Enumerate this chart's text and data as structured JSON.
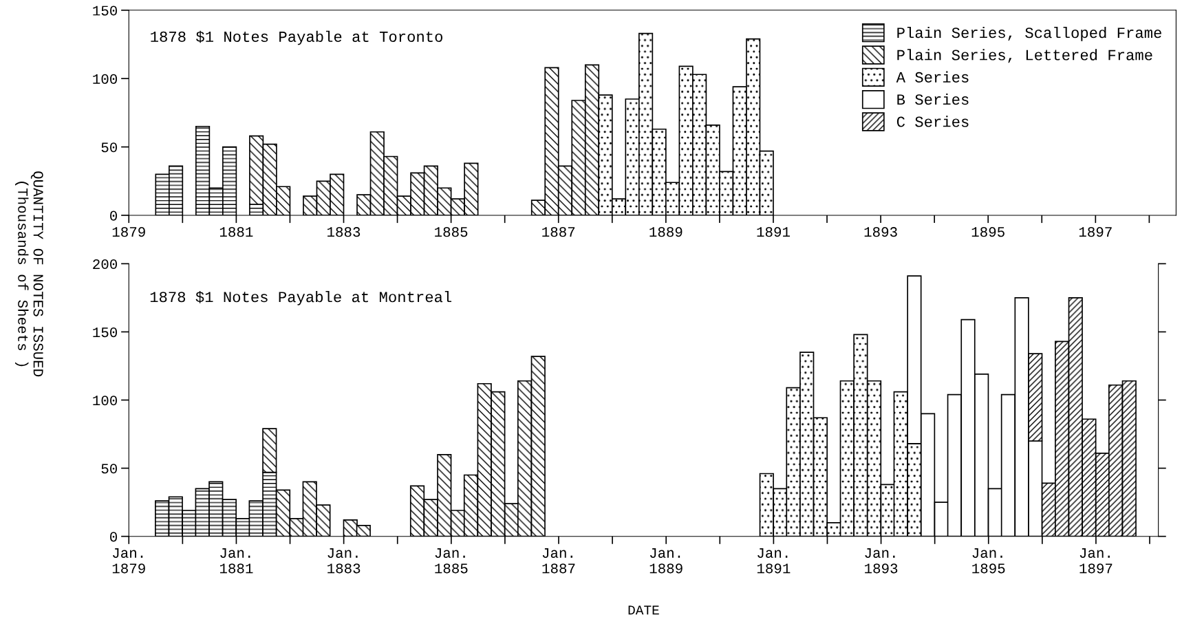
{
  "chart_data": [
    {
      "type": "bar",
      "title": "1878 $1 Notes Payable at Toronto",
      "ylabel": "QUANTITY OF NOTES ISSUED\n(Thousands of Sheets )",
      "xlim": [
        1879,
        1898.5
      ],
      "ylim": [
        0,
        150
      ],
      "yticks": [
        0,
        50,
        100,
        150
      ],
      "xticks": [
        {
          "value": 1879,
          "label": "1879"
        },
        {
          "value": 1880,
          "label": null
        },
        {
          "value": 1881,
          "label": "1881"
        },
        {
          "value": 1882,
          "label": null
        },
        {
          "value": 1883,
          "label": "1883"
        },
        {
          "value": 1884,
          "label": null
        },
        {
          "value": 1885,
          "label": "1885"
        },
        {
          "value": 1886,
          "label": null
        },
        {
          "value": 1887,
          "label": "1887"
        },
        {
          "value": 1888,
          "label": null
        },
        {
          "value": 1889,
          "label": "1889"
        },
        {
          "value": 1890,
          "label": null
        },
        {
          "value": 1891,
          "label": "1891"
        },
        {
          "value": 1892,
          "label": null
        },
        {
          "value": 1893,
          "label": "1893"
        },
        {
          "value": 1894,
          "label": null
        },
        {
          "value": 1895,
          "label": "1895"
        },
        {
          "value": 1896,
          "label": null
        },
        {
          "value": 1897,
          "label": "1897"
        },
        {
          "value": 1898,
          "label": null
        }
      ],
      "grid": false,
      "legend": "top right",
      "series": [
        {
          "name": "Plain Series, Scalloped Frame",
          "color": "#000000",
          "x": [
            1879.625,
            1879.875,
            1880.375,
            1880.625,
            1880.875,
            1881.375
          ],
          "values": [
            30,
            36,
            65,
            20,
            50,
            8
          ]
        },
        {
          "name": "Plain Series, Lettered Frame",
          "color": "#000000",
          "x": [
            1881.375,
            1881.625,
            1881.875,
            1882.375,
            1882.625,
            1882.875,
            1883.375,
            1883.625,
            1883.875,
            1884.125,
            1884.375,
            1884.625,
            1884.875,
            1885.125,
            1885.375,
            1886.625,
            1886.875,
            1887.125,
            1887.375,
            1887.625
          ],
          "values": [
            50,
            52,
            21,
            14,
            25,
            30,
            15,
            61,
            43,
            14,
            31,
            36,
            20,
            12,
            38,
            11,
            108,
            36,
            84,
            110
          ],
          "base": [
            8,
            0,
            0,
            0,
            0,
            0,
            0,
            0,
            0,
            0,
            0,
            0,
            0,
            0,
            0,
            0,
            0,
            0,
            0,
            0
          ]
        },
        {
          "name": "A Series",
          "color": "#000000",
          "x": [
            1887.875,
            1888.125,
            1888.375,
            1888.625,
            1888.875,
            1889.125,
            1889.375,
            1889.625,
            1889.875,
            1890.125,
            1890.375,
            1890.625,
            1890.875
          ],
          "values": [
            88,
            12,
            85,
            133,
            63,
            24,
            109,
            103,
            66,
            32,
            94,
            129,
            47
          ]
        },
        {
          "name": "B Series",
          "color": "#000000"
        },
        {
          "name": "C Series",
          "color": "#000000"
        }
      ]
    },
    {
      "type": "bar",
      "title": "1878 $1 Notes Payable at Montreal",
      "xlabel": "DATE",
      "xlim": [
        "1879-01",
        "1898-03"
      ],
      "ylim": [
        0,
        200
      ],
      "yticks": [
        0,
        50,
        100,
        150,
        200
      ],
      "xticks": [
        {
          "value": "1879-01",
          "label": "Jan.\n1879"
        },
        {
          "value": "1880-01",
          "label": null
        },
        {
          "value": "1881-01",
          "label": "Jan.\n1881"
        },
        {
          "value": "1882-01",
          "label": null
        },
        {
          "value": "1883-01",
          "label": "Jan.\n1883"
        },
        {
          "value": "1884-01",
          "label": null
        },
        {
          "value": "1885-01",
          "label": "Jan.\n1885"
        },
        {
          "value": "1886-01",
          "label": null
        },
        {
          "value": "1887-01",
          "label": "Jan.\n1887"
        },
        {
          "value": "1888-01",
          "label": null
        },
        {
          "value": "1889-01",
          "label": "Jan.\n1889"
        },
        {
          "value": "1890-01",
          "label": null
        },
        {
          "value": "1891-01",
          "label": "Jan.\n1891"
        },
        {
          "value": "1892-01",
          "label": null
        },
        {
          "value": "1893-01",
          "label": "Jan.\n1893"
        },
        {
          "value": "1894-01",
          "label": null
        },
        {
          "value": "1895-01",
          "label": "Jan.\n1895"
        },
        {
          "value": "1896-01",
          "label": null
        },
        {
          "value": "1897-01",
          "label": "Jan.\n1897"
        },
        {
          "value": "1898-01",
          "label": null
        }
      ],
      "grid": false,
      "legend": false,
      "series": [
        {
          "color": "#000000",
          "x": [
            "1879-08-15",
            "1879-11-15",
            "1880-02-15",
            "1880-05-15",
            "1880-08-15",
            "1880-11-15",
            "1881-02-15",
            "1881-05-15",
            "1881-08-15"
          ],
          "values": [
            26,
            29,
            19,
            35,
            40,
            27,
            13,
            26,
            47
          ]
        },
        {
          "color": "#000000",
          "x": [
            "1881-08-15",
            "1881-11-15",
            "1882-02-15",
            "1882-05-15",
            "1882-08-15",
            "1883-02-15",
            "1883-05-15",
            "1884-05-15",
            "1884-08-15",
            "1884-11-15",
            "1885-02-15",
            "1885-05-15",
            "1885-08-15",
            "1885-11-15",
            "1886-02-15",
            "1886-05-15",
            "1886-08-15"
          ],
          "values": [
            32,
            34,
            13,
            40,
            23,
            12,
            8,
            37,
            27,
            60,
            19,
            45,
            112,
            106,
            24,
            114,
            132
          ],
          "base": [
            47,
            0,
            0,
            0,
            0,
            0,
            0,
            0,
            0,
            0,
            0,
            0,
            0,
            0,
            0,
            0,
            0
          ]
        },
        {
          "color": "#000000",
          "x": [
            "1890-11-15",
            "1891-02-15",
            "1891-05-15",
            "1891-08-15",
            "1891-11-15",
            "1892-02-15",
            "1892-05-15",
            "1892-08-15",
            "1892-11-15",
            "1893-02-15",
            "1893-05-15",
            "1893-08-15"
          ],
          "values": [
            46,
            35,
            109,
            135,
            87,
            10,
            114,
            148,
            114,
            38,
            106,
            68
          ]
        },
        {
          "color": "#000000",
          "x": [
            "1893-08-15",
            "1893-11-15",
            "1894-02-15",
            "1894-05-15",
            "1894-08-15",
            "1894-11-15",
            "1895-02-15",
            "1895-05-15",
            "1895-08-15",
            "1895-11-15"
          ],
          "values": [
            123,
            90,
            25,
            104,
            159,
            119,
            35,
            104,
            175,
            70
          ],
          "base": [
            68,
            0,
            0,
            0,
            0,
            0,
            0,
            0,
            0,
            0
          ]
        },
        {
          "color": "#000000",
          "x": [
            "1895-11-15",
            "1896-02-15",
            "1896-05-15",
            "1896-08-15",
            "1896-11-15",
            "1897-02-15",
            "1897-05-15",
            "1897-08-15"
          ],
          "values": [
            64,
            39,
            143,
            175,
            86,
            61,
            111,
            114
          ],
          "base": [
            70,
            0,
            0,
            0,
            0,
            0,
            0,
            0
          ]
        }
      ]
    }
  ]
}
